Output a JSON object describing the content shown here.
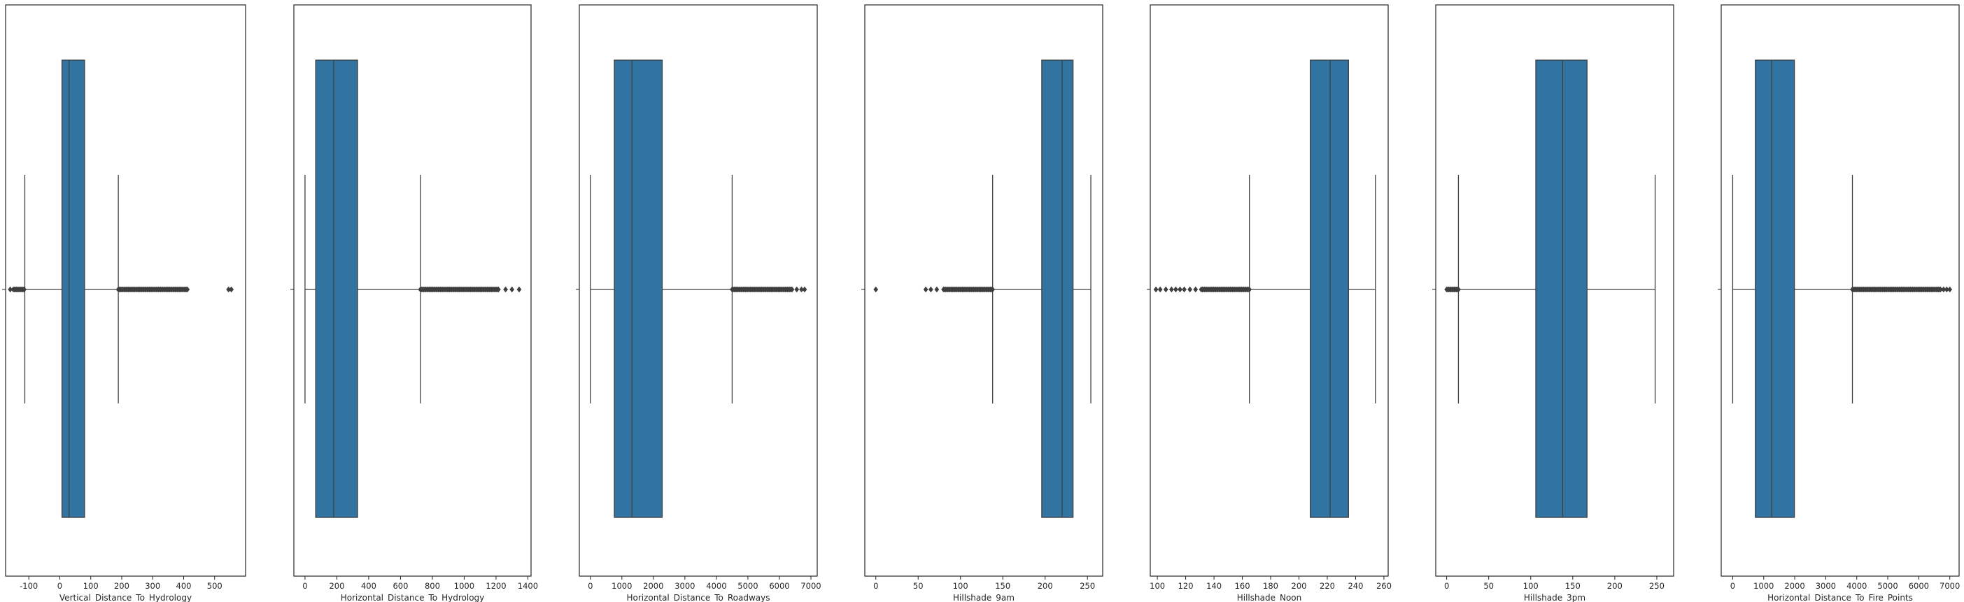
{
  "chart_data": [
    {
      "type": "box",
      "xlabel": "Vertical_Distance_To_Hydrology",
      "xlim": [
        -175,
        600
      ],
      "ticks": [
        -100,
        0,
        100,
        200,
        300,
        400,
        500
      ],
      "stats": {
        "whisker_low": -113,
        "q1": 7,
        "median": 30,
        "q3": 80,
        "whisker_high": 189
      },
      "fliers": {
        "low_dense": [
          -150,
          -115
        ],
        "high_dense": [
          189,
          412
        ],
        "isolated": [
          -160,
          545,
          554
        ]
      }
    },
    {
      "type": "box",
      "xlabel": "Horizontal_Distance_To_Hydrology",
      "xlim": [
        -70,
        1420
      ],
      "ticks": [
        0,
        200,
        400,
        600,
        800,
        1000,
        1200,
        1400
      ],
      "stats": {
        "whisker_low": 0,
        "q1": 67,
        "median": 180,
        "q3": 330,
        "whisker_high": 725
      },
      "fliers": {
        "low_dense": [],
        "high_dense": [
          725,
          1215
        ],
        "isolated": [
          1260,
          1300,
          1345
        ]
      }
    },
    {
      "type": "box",
      "xlabel": "Horizontal_Distance_To_Roadways",
      "xlim": [
        -350,
        7200
      ],
      "ticks": [
        0,
        1000,
        2000,
        3000,
        4000,
        5000,
        6000,
        7000
      ],
      "stats": {
        "whisker_low": 0,
        "q1": 760,
        "median": 1320,
        "q3": 2280,
        "whisker_high": 4500
      },
      "fliers": {
        "low_dense": [],
        "high_dense": [
          4500,
          6400
        ],
        "isolated": [
          6550,
          6700,
          6800
        ]
      }
    },
    {
      "type": "box",
      "xlabel": "Hillshade_9am",
      "xlim": [
        -13,
        268
      ],
      "ticks": [
        0,
        50,
        100,
        150,
        200,
        250
      ],
      "stats": {
        "whisker_low": 138,
        "q1": 196,
        "median": 220,
        "q3": 233,
        "whisker_high": 254
      },
      "fliers": {
        "low_dense": [
          80,
          138
        ],
        "high_dense": [],
        "isolated": [
          0,
          59,
          65,
          72
        ]
      }
    },
    {
      "type": "box",
      "xlabel": "Hillshade_Noon",
      "xlim": [
        95,
        263
      ],
      "ticks": [
        100,
        120,
        140,
        160,
        180,
        200,
        220,
        240,
        260
      ],
      "stats": {
        "whisker_low": 165,
        "q1": 208,
        "median": 222,
        "q3": 235,
        "whisker_high": 254
      },
      "fliers": {
        "low_dense": [
          131,
          165
        ],
        "high_dense": [],
        "isolated": [
          99,
          102,
          106,
          110,
          113,
          116,
          119,
          123,
          127
        ]
      }
    },
    {
      "type": "box",
      "xlabel": "Hillshade_3pm",
      "xlim": [
        -13,
        270
      ],
      "ticks": [
        0,
        50,
        100,
        150,
        200,
        250
      ],
      "stats": {
        "whisker_low": 14,
        "q1": 106,
        "median": 138,
        "q3": 167,
        "whisker_high": 248
      },
      "fliers": {
        "low_dense": [
          0,
          14
        ],
        "high_dense": [],
        "isolated": []
      }
    },
    {
      "type": "box",
      "xlabel": "Horizontal_Distance_To_Fire_Points",
      "xlim": [
        -370,
        7300
      ],
      "ticks": [
        0,
        1000,
        2000,
        3000,
        4000,
        5000,
        6000,
        7000
      ],
      "stats": {
        "whisker_low": 0,
        "q1": 730,
        "median": 1260,
        "q3": 1990,
        "whisker_high": 3860
      },
      "fliers": {
        "low_dense": [],
        "high_dense": [
          3860,
          6700
        ],
        "isolated": [
          6800,
          6900,
          7000
        ]
      }
    }
  ]
}
